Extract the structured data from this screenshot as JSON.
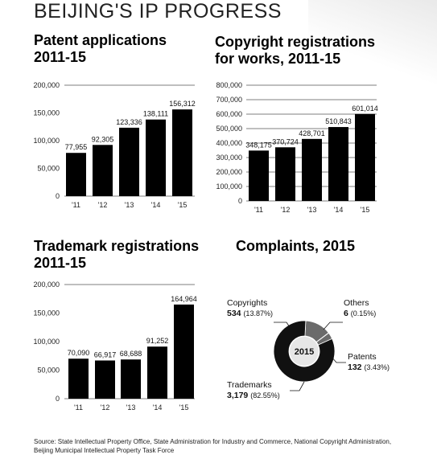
{
  "header": {
    "title": "BEIJING'S IP PROGRESS"
  },
  "charts_titles": {
    "patent": [
      "Patent applications",
      "2011-15"
    ],
    "copyright": [
      "Copyright registrations",
      "for works, 2011-15"
    ],
    "trademark": [
      "Trademark registrations",
      "2011-15"
    ],
    "complaints": [
      "Complaints, 2015"
    ]
  },
  "colors": {
    "bar": "#000000",
    "grid": "#555555",
    "donut_dark": "#111111",
    "donut_gray": "#6b6b6b",
    "donut_center": "#e6e6e6"
  },
  "chart_data": [
    {
      "type": "bar",
      "title": "Patent applications 2011-15",
      "categories": [
        "'11",
        "'12",
        "'13",
        "'14",
        "'15"
      ],
      "values": [
        77955,
        92305,
        123336,
        138111,
        156312
      ],
      "value_labels": [
        "77,955",
        "92,305",
        "123,336",
        "138,111",
        "156,312"
      ],
      "yticks": [
        "0",
        "50,000",
        "100,000",
        "150,000",
        "200,000"
      ],
      "ylim": [
        0,
        200000
      ],
      "grid": "top line only"
    },
    {
      "type": "bar",
      "title": "Copyright registrations for works, 2011-15",
      "categories": [
        "'11",
        "'12",
        "'13",
        "'14",
        "'15"
      ],
      "values": [
        348175,
        370724,
        428701,
        510843,
        601014
      ],
      "value_labels": [
        "348,175",
        "370,724",
        "428,701",
        "510,843",
        "601,014"
      ],
      "yticks": [
        "0",
        "100,000",
        "200,000",
        "300,000",
        "400,000",
        "500,000",
        "600,000",
        "700,000",
        "800,000"
      ],
      "ylim": [
        0,
        800000
      ],
      "grid": "horizontal gridlines"
    },
    {
      "type": "bar",
      "title": "Trademark registrations 2011-15",
      "categories": [
        "'11",
        "'12",
        "'13",
        "'14",
        "'15"
      ],
      "values": [
        70090,
        66917,
        68688,
        91252,
        164964
      ],
      "value_labels": [
        "70,090",
        "66,917",
        "68,688",
        "91,252",
        "164,964"
      ],
      "yticks": [
        "0",
        "50,000",
        "100,000",
        "150,000",
        "200,000"
      ],
      "ylim": [
        0,
        200000
      ],
      "grid": "top line only"
    },
    {
      "type": "pie",
      "title": "Complaints, 2015",
      "center_label": "2015",
      "slices": [
        {
          "name": "Trademarks",
          "value": 3179,
          "value_label": "3,179",
          "pct": "(82.55%)"
        },
        {
          "name": "Copyrights",
          "value": 534,
          "value_label": "534",
          "pct": "(13.87%)"
        },
        {
          "name": "Others",
          "value": 6,
          "value_label": "6",
          "pct": "(0.15%)"
        },
        {
          "name": "Patents",
          "value": 132,
          "value_label": "132",
          "pct": "(3.43%)"
        }
      ]
    }
  ],
  "footer": {
    "source": "Source: State Intellectual Property Office, State Administration for Industry and Commerce, National Copyright Administration, Beijing Municipal Intellectual Property Task Force"
  }
}
